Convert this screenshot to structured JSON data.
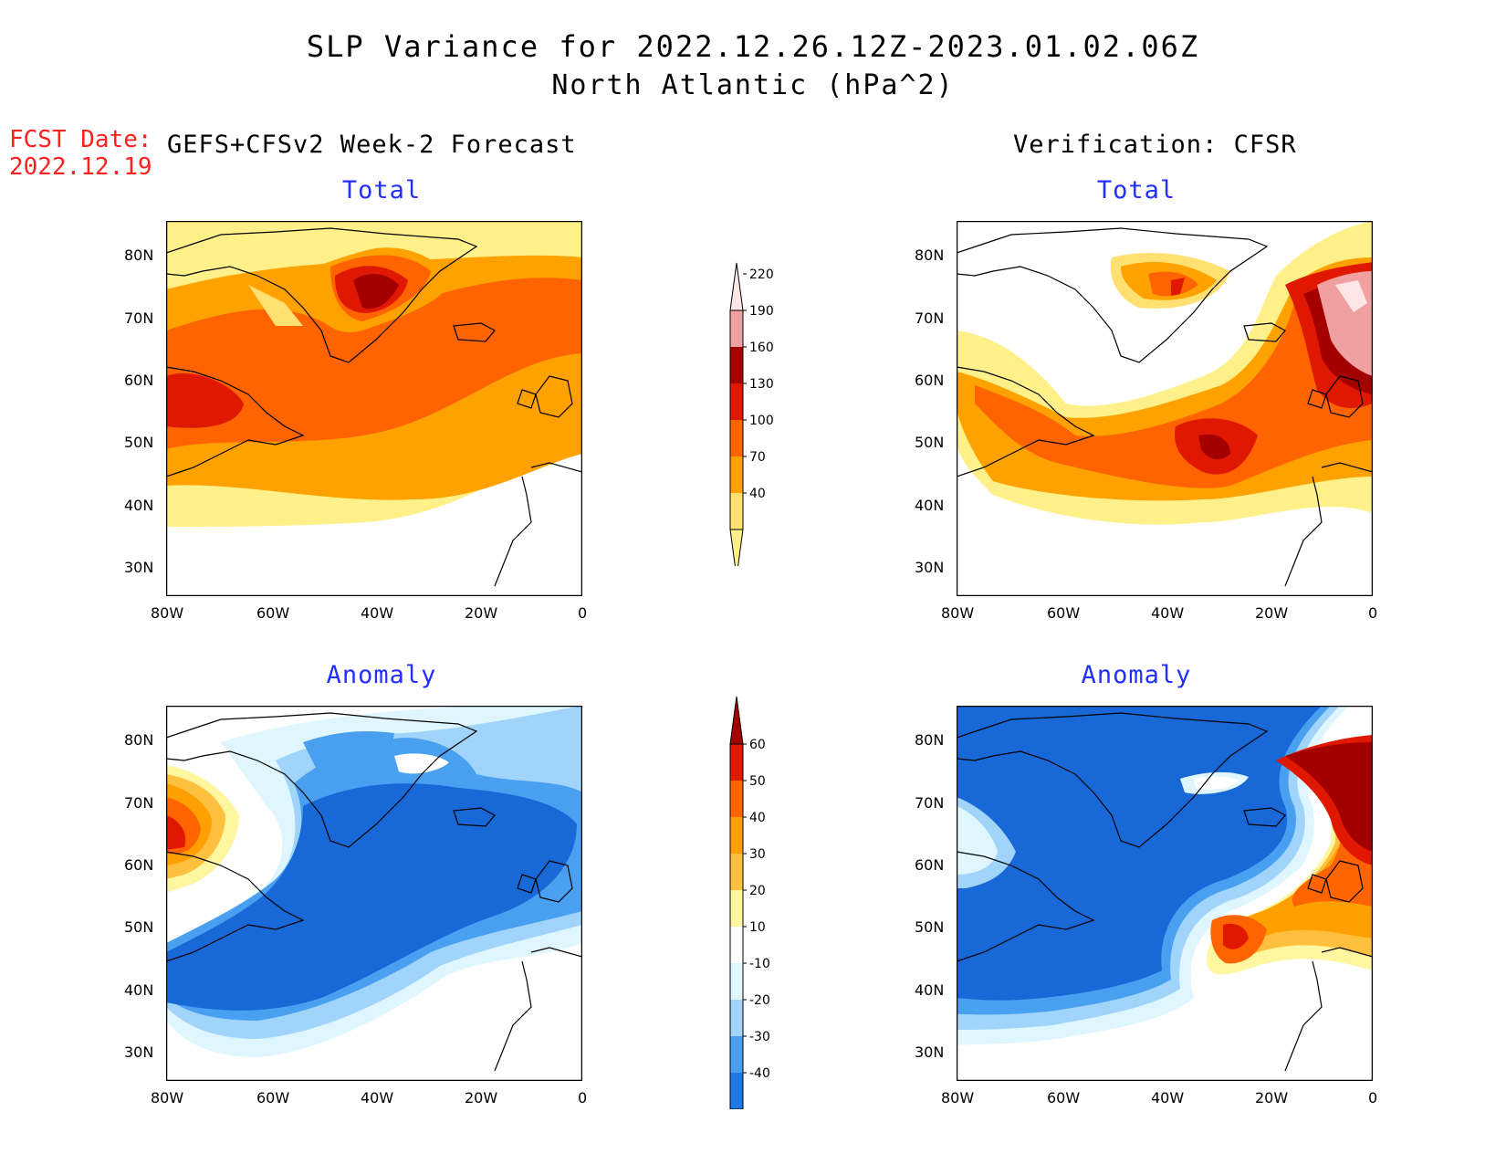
{
  "header": {
    "title": "SLP Variance for 2022.12.26.12Z-2023.01.02.06Z",
    "subtitle": "North Atlantic (hPa^2)",
    "fcst_label": "FCST Date:",
    "fcst_date": "2022.12.19",
    "left_column": "GEFS+CFSv2 Week-2 Forecast",
    "right_column": "Verification: CFSR"
  },
  "panels": {
    "fc_total": {
      "label": "Total"
    },
    "vf_total": {
      "label": "Total"
    },
    "fc_anom": {
      "label": "Anomaly"
    },
    "vf_anom": {
      "label": "Anomaly"
    }
  },
  "axes": {
    "lat_ticks": [
      "80N",
      "70N",
      "60N",
      "50N",
      "40N",
      "30N"
    ],
    "lon_ticks": [
      "80W",
      "60W",
      "40W",
      "20W",
      "0"
    ]
  },
  "colorbars": {
    "total": {
      "levels": [
        "40",
        "70",
        "100",
        "130",
        "160",
        "190",
        "220"
      ],
      "colors": [
        "#fff08a",
        "#ffe070",
        "#ffa200",
        "#ff6400",
        "#e11800",
        "#a50000",
        "#f0a0a0",
        "#ffe6e6"
      ]
    },
    "anomaly": {
      "levels": [
        "-40",
        "-30",
        "-20",
        "-10",
        "10",
        "20",
        "30",
        "40",
        "50",
        "60"
      ],
      "colors": [
        "#1868d8",
        "#1e78e6",
        "#4aa0f0",
        "#a0d4fa",
        "#e0f6ff",
        "#ffffff",
        "#fff6a0",
        "#ffc040",
        "#ffa000",
        "#ff6400",
        "#e01800",
        "#a50000"
      ]
    }
  },
  "palette": {
    "title_red": "#ff2020",
    "subtitle_blue": "#2230ff"
  }
}
